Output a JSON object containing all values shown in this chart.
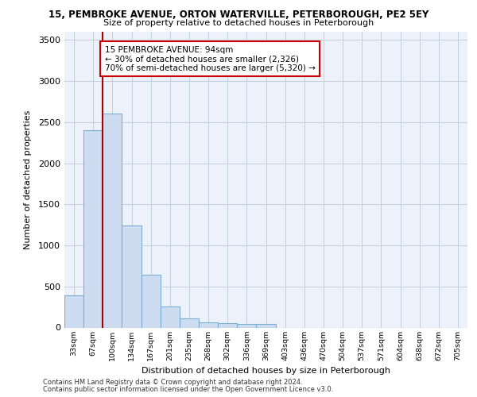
{
  "title1": "15, PEMBROKE AVENUE, ORTON WATERVILLE, PETERBOROUGH, PE2 5EY",
  "title2": "Size of property relative to detached houses in Peterborough",
  "xlabel": "Distribution of detached houses by size in Peterborough",
  "ylabel": "Number of detached properties",
  "categories": [
    "33sqm",
    "67sqm",
    "100sqm",
    "134sqm",
    "167sqm",
    "201sqm",
    "235sqm",
    "268sqm",
    "302sqm",
    "336sqm",
    "369sqm",
    "403sqm",
    "436sqm",
    "470sqm",
    "504sqm",
    "537sqm",
    "571sqm",
    "604sqm",
    "638sqm",
    "672sqm",
    "705sqm"
  ],
  "values": [
    390,
    2400,
    2600,
    1240,
    640,
    260,
    110,
    65,
    55,
    40,
    40,
    0,
    0,
    0,
    0,
    0,
    0,
    0,
    0,
    0,
    0
  ],
  "bar_color": "#cddcf0",
  "bar_edge_color": "#7bafd4",
  "vline_x": 1.5,
  "vline_color": "#aa0000",
  "annotation_text": "15 PEMBROKE AVENUE: 94sqm\n← 30% of detached houses are smaller (2,326)\n70% of semi-detached houses are larger (5,320) →",
  "annotation_box_color": "#ffffff",
  "annotation_box_edge": "#cc0000",
  "ylim": [
    0,
    3600
  ],
  "yticks": [
    0,
    500,
    1000,
    1500,
    2000,
    2500,
    3000,
    3500
  ],
  "footer1": "Contains HM Land Registry data © Crown copyright and database right 2024.",
  "footer2": "Contains public sector information licensed under the Open Government Licence v3.0.",
  "plot_bg": "#edf2fa"
}
